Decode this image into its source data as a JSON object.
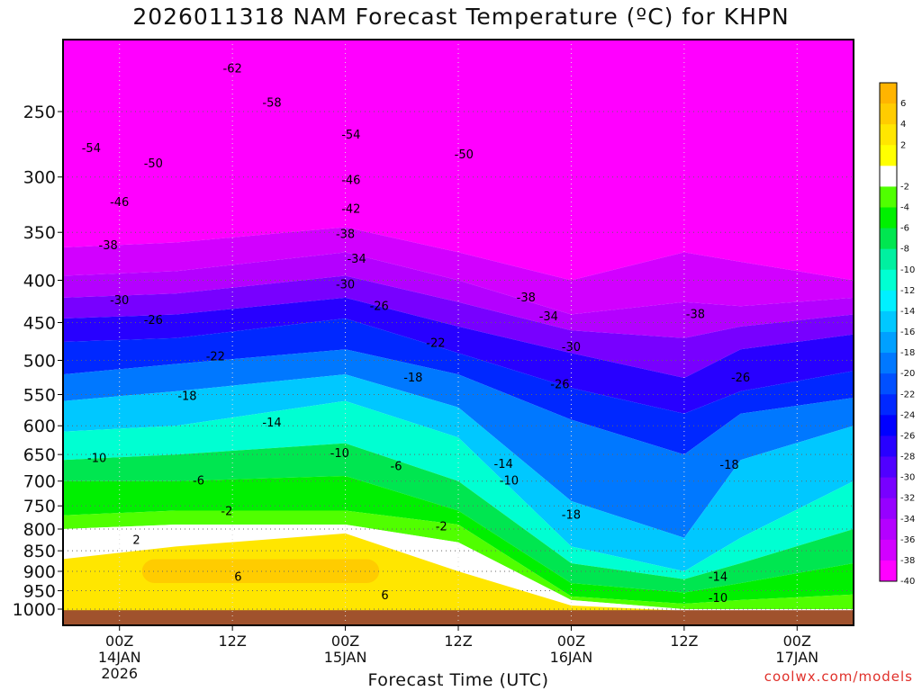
{
  "chart_data": {
    "type": "heatmap",
    "title": "2026011318 NAM Forecast Temperature (ºC) for KHPN",
    "xlabel": "Forecast Time (UTC)",
    "ylabel": "",
    "credit": "coolwx.com/models",
    "y_axis": {
      "scale": "log-pressure",
      "reversed": true,
      "range": [
        1025,
        200
      ],
      "ticks": [
        250,
        300,
        350,
        400,
        450,
        500,
        550,
        600,
        650,
        700,
        750,
        800,
        850,
        900,
        950,
        1000
      ]
    },
    "x_axis": {
      "range_hours": [
        -5,
        65
      ],
      "ticks": [
        {
          "h": 0,
          "label1": "00Z",
          "label2": "14JAN",
          "label3": "2026"
        },
        {
          "h": 10,
          "label1": "12Z",
          "label2": "",
          "label3": ""
        },
        {
          "h": 20,
          "label1": "00Z",
          "label2": "15JAN",
          "label3": ""
        },
        {
          "h": 30,
          "label1": "12Z",
          "label2": "",
          "label3": ""
        },
        {
          "h": 40,
          "label1": "00Z",
          "label2": "16JAN",
          "label3": ""
        },
        {
          "h": 50,
          "label1": "12Z",
          "label2": "",
          "label3": ""
        },
        {
          "h": 60,
          "label1": "00Z",
          "label2": "17JAN",
          "label3": ""
        }
      ]
    },
    "grid": true,
    "legend_position": "right",
    "colorbar": [
      {
        "label": "6",
        "color": "#ffb400"
      },
      {
        "label": "4",
        "color": "#ffcc00"
      },
      {
        "label": "2",
        "color": "#ffe600"
      },
      {
        "label": "",
        "color": "#ffff00"
      },
      {
        "label": "-2",
        "color": "#ffffff"
      },
      {
        "label": "-4",
        "color": "#50ff00"
      },
      {
        "label": "-6",
        "color": "#00f000"
      },
      {
        "label": "-8",
        "color": "#00e650"
      },
      {
        "label": "-10",
        "color": "#00f0a0"
      },
      {
        "label": "-12",
        "color": "#00ffd2"
      },
      {
        "label": "-14",
        "color": "#00f0ff"
      },
      {
        "label": "-16",
        "color": "#00c8ff"
      },
      {
        "label": "-18",
        "color": "#00a0ff"
      },
      {
        "label": "-20",
        "color": "#0078ff"
      },
      {
        "label": "-22",
        "color": "#0050ff"
      },
      {
        "label": "-24",
        "color": "#0028ff"
      },
      {
        "label": "-26",
        "color": "#0000ff"
      },
      {
        "label": "-28",
        "color": "#2800ff"
      },
      {
        "label": "-30",
        "color": "#5000ff"
      },
      {
        "label": "-32",
        "color": "#7800ff"
      },
      {
        "label": "-34",
        "color": "#9600ff"
      },
      {
        "label": "-36",
        "color": "#b400ff"
      },
      {
        "label": "-38",
        "color": "#d200ff"
      },
      {
        "label": "-40",
        "color": "#ff00ff"
      }
    ],
    "bands": [
      {
        "color": "#ff00ff",
        "top": [
          200,
          200,
          200,
          200,
          200,
          200,
          200,
          200
        ],
        "bottom": [
          365,
          360,
          345,
          370,
          400,
          370,
          380,
          400
        ]
      },
      {
        "color": "#d200ff",
        "top": [
          365,
          360,
          345,
          370,
          400,
          370,
          380,
          400
        ],
        "bottom": [
          395,
          390,
          370,
          400,
          440,
          425,
          430,
          420
        ]
      },
      {
        "color": "#b400ff",
        "top": [
          395,
          390,
          370,
          400,
          440,
          425,
          430,
          420
        ],
        "bottom": [
          420,
          415,
          395,
          425,
          460,
          470,
          455,
          440
        ]
      },
      {
        "color": "#7800ff",
        "top": [
          420,
          415,
          395,
          425,
          460,
          470,
          455,
          440
        ],
        "bottom": [
          445,
          440,
          420,
          455,
          490,
          525,
          485,
          465
        ]
      },
      {
        "color": "#2800ff",
        "top": [
          445,
          440,
          420,
          455,
          490,
          525,
          485,
          465
        ],
        "bottom": [
          475,
          470,
          445,
          490,
          540,
          580,
          545,
          515
        ]
      },
      {
        "color": "#0028ff",
        "top": [
          475,
          470,
          445,
          490,
          540,
          580,
          545,
          515
        ],
        "bottom": [
          520,
          505,
          485,
          520,
          590,
          650,
          580,
          555
        ]
      },
      {
        "color": "#0078ff",
        "top": [
          520,
          505,
          485,
          520,
          590,
          650,
          580,
          555
        ],
        "bottom": [
          560,
          545,
          520,
          570,
          740,
          820,
          660,
          600
        ]
      },
      {
        "color": "#00c8ff",
        "top": [
          560,
          545,
          520,
          570,
          740,
          820,
          660,
          600
        ],
        "bottom": [
          610,
          600,
          560,
          620,
          840,
          900,
          820,
          700
        ]
      },
      {
        "color": "#00ffd2",
        "top": [
          610,
          600,
          560,
          620,
          840,
          900,
          820,
          700
        ],
        "bottom": [
          660,
          650,
          630,
          700,
          880,
          920,
          880,
          800
        ]
      },
      {
        "color": "#00e650",
        "top": [
          660,
          650,
          630,
          700,
          880,
          920,
          880,
          800
        ],
        "bottom": [
          700,
          700,
          690,
          760,
          930,
          955,
          930,
          880
        ]
      },
      {
        "color": "#00f000",
        "top": [
          700,
          700,
          690,
          760,
          930,
          955,
          930,
          880
        ],
        "bottom": [
          770,
          760,
          760,
          790,
          965,
          985,
          975,
          960
        ]
      },
      {
        "color": "#50ff00",
        "top": [
          770,
          760,
          760,
          790,
          965,
          985,
          975,
          960
        ],
        "bottom": [
          800,
          790,
          790,
          830,
          975,
          1000,
          1000,
          1000
        ]
      },
      {
        "color": "#ffffff",
        "top": [
          800,
          790,
          790,
          830,
          975,
          1000,
          1000,
          1000
        ],
        "bottom": [
          870,
          840,
          810,
          900,
          990,
          1005,
          1005,
          1005
        ]
      },
      {
        "color": "#ffe600",
        "top": [
          870,
          840,
          810,
          900,
          990,
          1005,
          1005,
          1005
        ],
        "bottom": [
          1025,
          1025,
          1025,
          1025,
          1025,
          1025,
          1025,
          1025
        ]
      }
    ],
    "band_x_hours": [
      -5,
      5,
      20,
      30,
      40,
      50,
      55,
      65
    ],
    "warm_pocket": {
      "color": "#ffcc00",
      "h_start": 2,
      "h_end": 23,
      "top": 870,
      "bottom": 930
    },
    "ground": {
      "color": "#a0522d",
      "top_hpa": 1003
    },
    "contours": [
      {
        "label": "-62",
        "h": 10,
        "p": 222
      },
      {
        "label": "-58",
        "h": 13.5,
        "p": 244
      },
      {
        "label": "-54",
        "h": -2.5,
        "p": 277
      },
      {
        "label": "-54",
        "h": 20.5,
        "p": 267
      },
      {
        "label": "-50",
        "h": 3,
        "p": 289
      },
      {
        "label": "-50",
        "h": 30.5,
        "p": 282
      },
      {
        "label": "-46",
        "h": 0,
        "p": 322
      },
      {
        "label": "-46",
        "h": 20.5,
        "p": 303
      },
      {
        "label": "-42",
        "h": 20.5,
        "p": 328
      },
      {
        "label": "-38",
        "h": -1,
        "p": 363
      },
      {
        "label": "-38",
        "h": 20,
        "p": 352
      },
      {
        "label": "-38",
        "h": 36,
        "p": 420
      },
      {
        "label": "-38",
        "h": 51,
        "p": 440
      },
      {
        "label": "-34",
        "h": 21,
        "p": 377
      },
      {
        "label": "-34",
        "h": 38,
        "p": 443
      },
      {
        "label": "-30",
        "h": 0,
        "p": 423
      },
      {
        "label": "-30",
        "h": 20,
        "p": 405
      },
      {
        "label": "-30",
        "h": 40,
        "p": 482
      },
      {
        "label": "-26",
        "h": 3,
        "p": 447
      },
      {
        "label": "-26",
        "h": 23,
        "p": 430
      },
      {
        "label": "-26",
        "h": 39,
        "p": 535
      },
      {
        "label": "-26",
        "h": 55,
        "p": 525
      },
      {
        "label": "-22",
        "h": 8.5,
        "p": 495
      },
      {
        "label": "-22",
        "h": 28,
        "p": 477
      },
      {
        "label": "-18",
        "h": 6,
        "p": 553
      },
      {
        "label": "-18",
        "h": 26,
        "p": 525
      },
      {
        "label": "-18",
        "h": 40,
        "p": 770
      },
      {
        "label": "-18",
        "h": 54,
        "p": 670
      },
      {
        "label": "-14",
        "h": 13.5,
        "p": 595
      },
      {
        "label": "-14",
        "h": 34,
        "p": 668
      },
      {
        "label": "-14",
        "h": 53,
        "p": 915
      },
      {
        "label": "-10",
        "h": -2,
        "p": 657
      },
      {
        "label": "-10",
        "h": 19.5,
        "p": 648
      },
      {
        "label": "-10",
        "h": 34.5,
        "p": 700
      },
      {
        "label": "-10",
        "h": 53,
        "p": 970
      },
      {
        "label": "-6",
        "h": 7,
        "p": 700
      },
      {
        "label": "-6",
        "h": 24.5,
        "p": 672
      },
      {
        "label": "-2",
        "h": 9.5,
        "p": 762
      },
      {
        "label": "-2",
        "h": 28.5,
        "p": 795
      },
      {
        "label": "2",
        "h": 1.5,
        "p": 825
      },
      {
        "label": "6",
        "h": 10.5,
        "p": 915
      },
      {
        "label": "6",
        "h": 23.5,
        "p": 963
      }
    ]
  }
}
